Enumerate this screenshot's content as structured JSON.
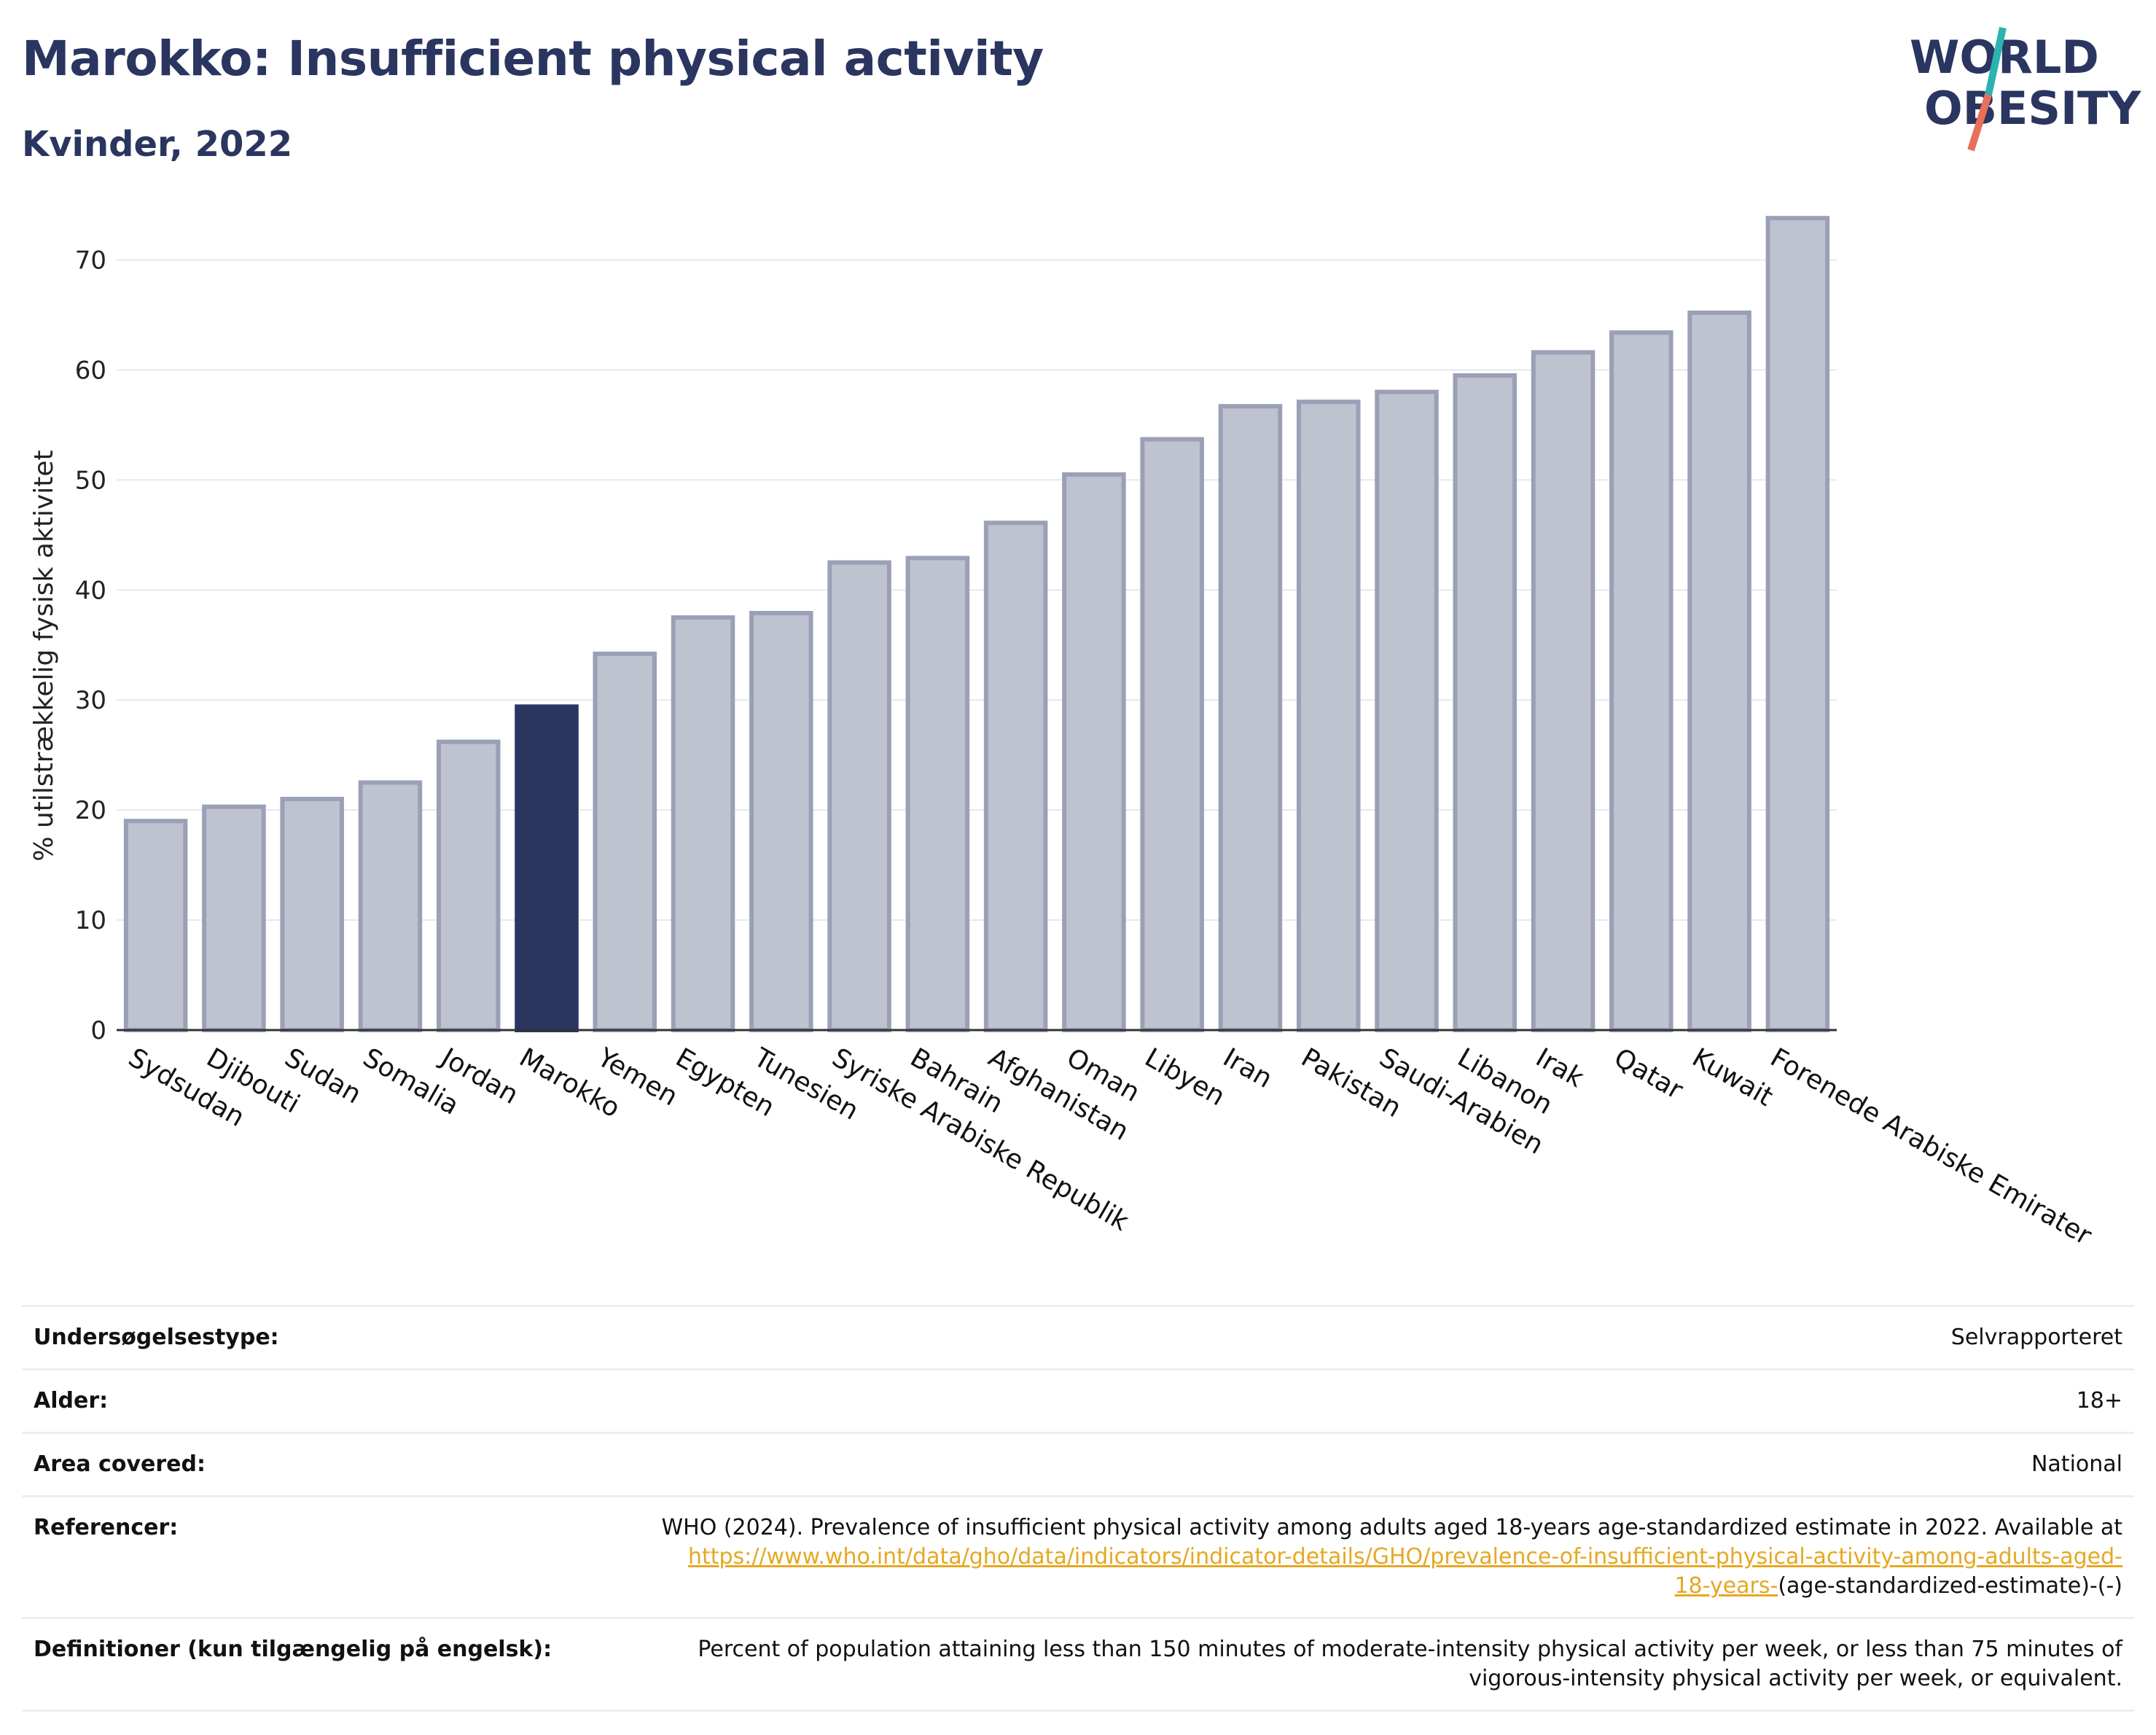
{
  "header": {
    "title": "Marokko: Insufficient physical activity",
    "subtitle": "Kvinder, 2022"
  },
  "logo": {
    "line1": "WORLD",
    "line2": "OBESITY",
    "colors": {
      "text": "#2a3560",
      "slash_teal": "#2bb3b0",
      "slash_coral": "#e8705a"
    }
  },
  "chart_data": {
    "type": "bar",
    "categories": [
      "Sydsudan",
      "Djibouti",
      "Sudan",
      "Somalia",
      "Jordan",
      "Marokko",
      "Yemen",
      "Egypten",
      "Tunesien",
      "Syriske Arabiske Republik",
      "Bahrain",
      "Afghanistan",
      "Oman",
      "Libyen",
      "Iran",
      "Pakistan",
      "Saudi-Arabien",
      "Libanon",
      "Irak",
      "Qatar",
      "Kuwait",
      "Forenede Arabiske Emirater"
    ],
    "values": [
      19.0,
      20.3,
      21.0,
      22.5,
      26.2,
      29.4,
      34.2,
      37.5,
      37.9,
      42.5,
      42.9,
      46.1,
      50.5,
      53.7,
      56.7,
      57.1,
      58.0,
      59.5,
      61.6,
      63.4,
      65.2,
      73.8
    ],
    "highlight": "Marokko",
    "ylabel": "% utilstrækkelig fysisk aktivitet",
    "xlabel": "",
    "ylim": [
      0,
      76
    ],
    "yticks": [
      0,
      10,
      20,
      30,
      40,
      50,
      60,
      70
    ],
    "grid": true,
    "colors": {
      "bar": "#bfc2cf",
      "bar_edge": "#9aa0b6",
      "highlight": "#2a3560",
      "grid": "#e6e8ef",
      "axis": "#333333"
    }
  },
  "info": {
    "rows": [
      {
        "key": "Undersøgelsestype:",
        "value": "Selvrapporteret"
      },
      {
        "key": "Alder:",
        "value": "18+"
      },
      {
        "key": "Area covered:",
        "value": "National"
      }
    ],
    "references": {
      "key": "Referencer:",
      "text": "WHO (2024). Prevalence of insufficient physical activity among adults aged 18-years age-standardized estimate in 2022. Available at",
      "link_line1": "https://www.who.int/data/gho/data/indicators/indicator-details/GHO/prevalence-of-insufficient-physical-activity-among-adults-aged-",
      "link_line2": "18-years-",
      "suffix": "(age-standardized-estimate)-(-)"
    },
    "definition": {
      "key": "Definitioner (kun tilgængelig på engelsk):",
      "line1": "Percent of population attaining less than 150 minutes of moderate-intensity physical activity per week, or less than 75 minutes of",
      "line2": "vigorous-intensity physical activity per week, or equivalent."
    }
  }
}
